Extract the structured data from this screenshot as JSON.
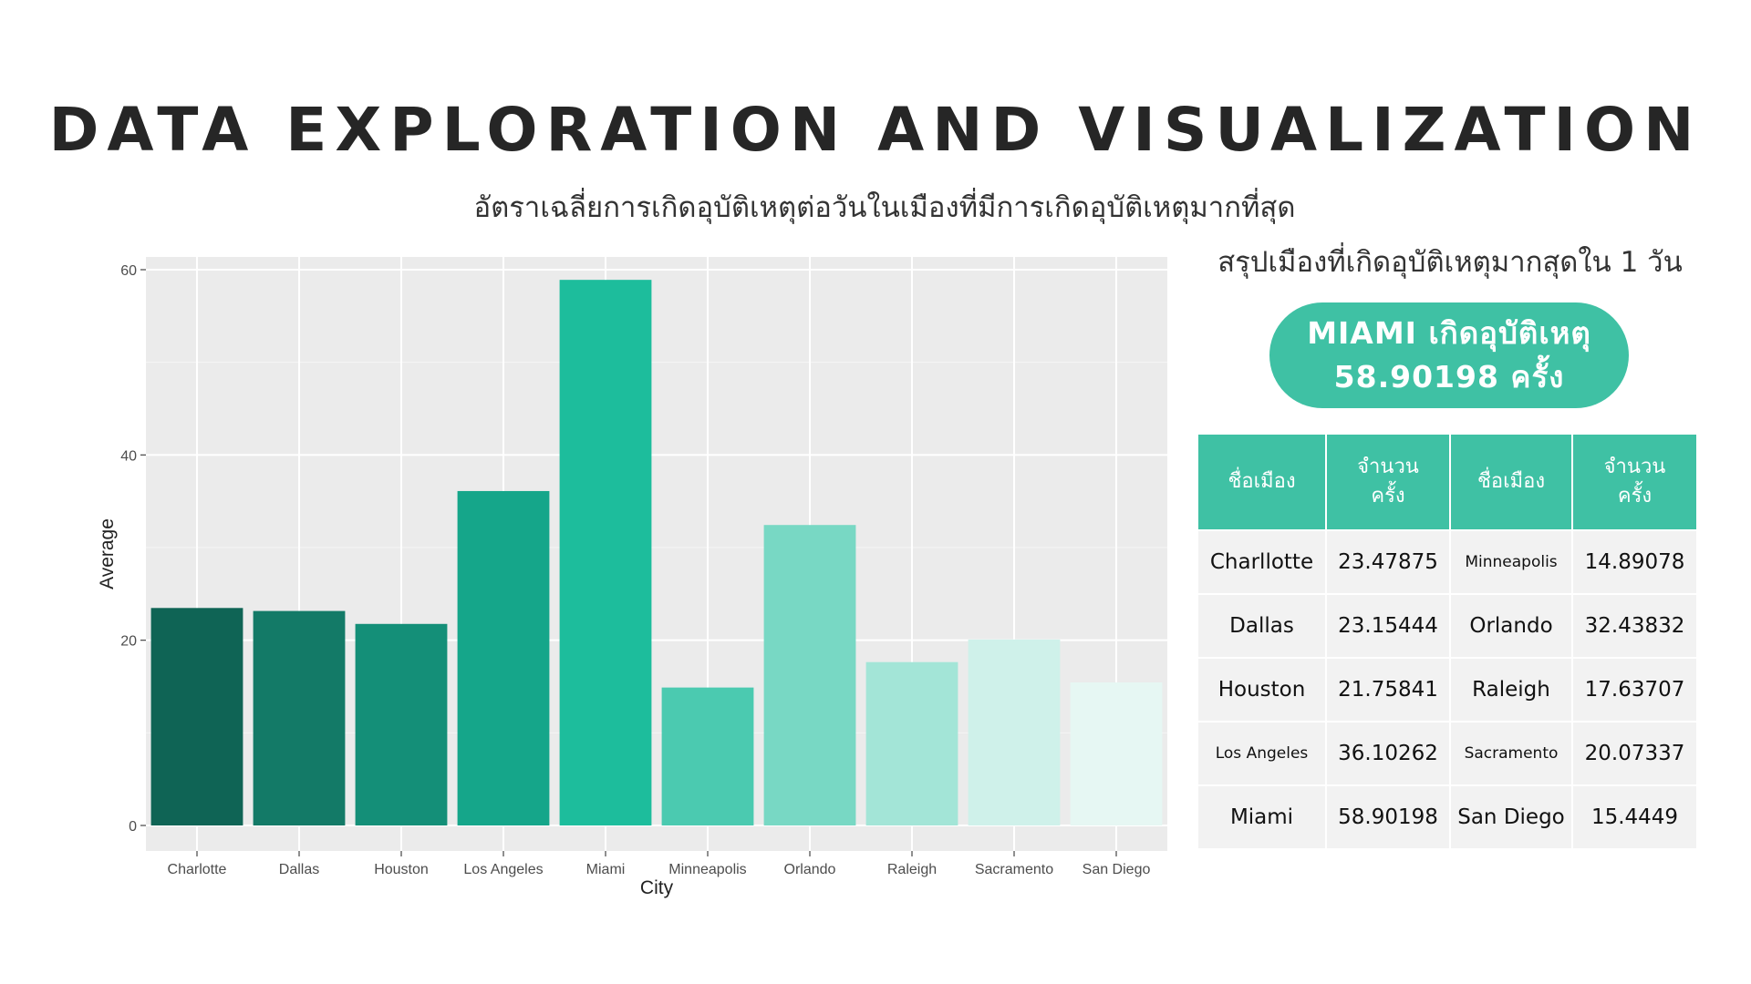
{
  "page": {
    "title": "DATA EXPLORATION AND VISUALIZATION",
    "subtitle": "อัตราเฉลี่ยการเกิดอุบัติเหตุต่อวันในเมืองที่มีการเกิดอุบัติเหตุมากที่สุด"
  },
  "summary": {
    "heading": "สรุปเมืองที่เกิดอุบัติเหตุมากสุดใน 1 วัน",
    "highlight_line1": "MIAMI เกิดอุบัติเหตุ",
    "highlight_line2": "58.90198 ครั้ง",
    "accent_color": "#3fc1a4"
  },
  "table": {
    "headers": [
      {
        "line1": "ชื่อเมือง",
        "line2": ""
      },
      {
        "line1": "จำนวน",
        "line2": "ครั้ง"
      },
      {
        "line1": "ชื่อเมือง",
        "line2": ""
      },
      {
        "line1": "จำนวน",
        "line2": "ครั้ง"
      }
    ],
    "rows": [
      [
        "Charllotte",
        "23.47875",
        "Minneapolis",
        "14.89078"
      ],
      [
        "Dallas",
        "23.15444",
        "Orlando",
        "32.43832"
      ],
      [
        "Houston",
        "21.75841",
        "Raleigh",
        "17.63707"
      ],
      [
        "Los Angeles",
        "36.10262",
        "Sacramento",
        "20.07337"
      ],
      [
        "Miami",
        "58.90198",
        "San Diego",
        "15.4449"
      ]
    ]
  },
  "chart_data": {
    "type": "bar",
    "categories": [
      "Charlotte",
      "Dallas",
      "Houston",
      "Los Angeles",
      "Miami",
      "Minneapolis",
      "Orlando",
      "Raleigh",
      "Sacramento",
      "San Diego"
    ],
    "values": [
      23.47875,
      23.15444,
      21.75841,
      36.10262,
      58.90198,
      14.89078,
      32.43832,
      17.63707,
      20.07337,
      15.4449
    ],
    "colors": [
      "#0f6455",
      "#137a67",
      "#148f78",
      "#15a68a",
      "#1dbd9c",
      "#4bcab0",
      "#78d8c4",
      "#a3e5d7",
      "#cff1ea",
      "#e6f7f3"
    ],
    "title": "",
    "xlabel": "City",
    "ylabel": "Average",
    "ylim": [
      0,
      60
    ],
    "yticks": [
      0,
      20,
      40,
      60
    ],
    "grid": true,
    "legend": "none",
    "panel_background": "#ebebeb"
  }
}
